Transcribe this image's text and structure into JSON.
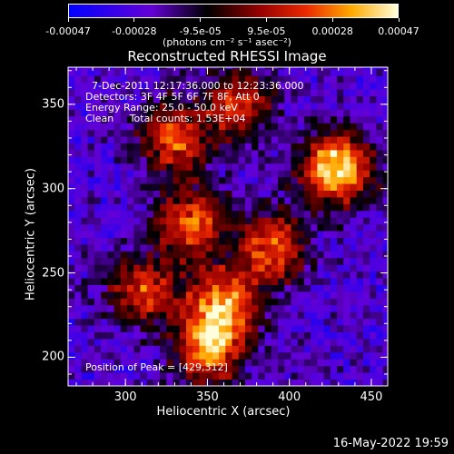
{
  "chart_data": {
    "type": "heatmap",
    "title": "Reconstructed RHESSI Image",
    "xlabel": "Heliocentric X (arcsec)",
    "ylabel": "Heliocentric Y (arcsec)",
    "xlim": [
      265,
      460
    ],
    "ylim": [
      183,
      372
    ],
    "x_ticks": [
      "300",
      "350",
      "400",
      "450"
    ],
    "y_ticks": [
      "200",
      "250",
      "300",
      "350"
    ],
    "colorbar": {
      "range": [
        -0.00047,
        0.00047
      ],
      "tick_labels": [
        "-0.00047",
        "-0.00028",
        "-9.5e-05",
        "9.5e-05",
        "0.00028",
        "0.00047"
      ],
      "units": "(photons cm⁻² s⁻¹ asec⁻²)"
    },
    "annotations": [
      "7-Dec-2011 12:17:36.000 to 12:23:36.000",
      "Detectors: 3F 4F 5F 6F 7F 8F, Att 0",
      "Energy Range: 25.0 - 50.0 keV",
      "Clean     Total counts: 1.53E+04"
    ],
    "peak_label": "Position of Peak = [429,312]",
    "peak_position": [
      429,
      312
    ],
    "sources": [
      {
        "x": 429,
        "y": 312,
        "value": 0.00047
      },
      {
        "x": 360,
        "y": 232,
        "value": 0.00032
      },
      {
        "x": 350,
        "y": 205,
        "value": 0.0003
      },
      {
        "x": 340,
        "y": 280,
        "value": 0.00025
      },
      {
        "x": 330,
        "y": 330,
        "value": 0.00022
      },
      {
        "x": 390,
        "y": 265,
        "value": 0.00022
      },
      {
        "x": 310,
        "y": 240,
        "value": 0.00018
      },
      {
        "x": 370,
        "y": 350,
        "value": 0.00017
      }
    ]
  },
  "footer": {
    "date": "16-May-2022 19:59"
  }
}
